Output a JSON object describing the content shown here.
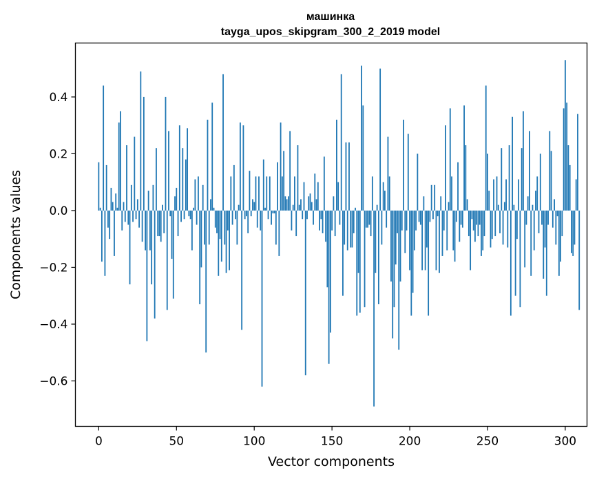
{
  "chart_data": {
    "type": "bar",
    "title": "машинка",
    "subtitle": "tayga_upos_skipgram_300_2_2019 model",
    "xlabel": "Vector components",
    "ylabel": "Components values",
    "xlim": [
      -15,
      314
    ],
    "ylim": [
      -0.76,
      0.59
    ],
    "xticks": [
      0,
      50,
      100,
      150,
      200,
      250,
      300
    ],
    "xtick_labels": [
      "0",
      "50",
      "100",
      "150",
      "200",
      "250",
      "300"
    ],
    "yticks": [
      -0.6,
      -0.4,
      -0.2,
      0.0,
      0.2,
      0.4
    ],
    "ytick_labels": [
      "−0.6",
      "−0.4",
      "−0.2",
      "0.0",
      "0.2",
      "0.4"
    ],
    "grid": false,
    "color": "#1f77b4",
    "values": [
      0.17,
      0.01,
      -0.18,
      0.44,
      -0.23,
      0.16,
      -0.06,
      -0.1,
      0.08,
      0.03,
      -0.16,
      0.06,
      0.01,
      0.31,
      0.35,
      -0.07,
      0.03,
      -0.04,
      0.23,
      -0.05,
      -0.26,
      0.09,
      -0.04,
      0.26,
      -0.03,
      0.04,
      -0.06,
      0.49,
      -0.11,
      0.4,
      -0.14,
      -0.46,
      0.07,
      -0.14,
      -0.26,
      0.09,
      -0.38,
      0.22,
      -0.09,
      -0.09,
      -0.11,
      0.02,
      -0.08,
      0.4,
      -0.35,
      0.28,
      -0.02,
      -0.17,
      -0.31,
      0.05,
      0.08,
      -0.09,
      0.3,
      -0.04,
      0.22,
      -0.03,
      0.18,
      0.29,
      -0.02,
      -0.03,
      -0.14,
      0.01,
      0.11,
      -0.05,
      0.12,
      -0.33,
      -0.2,
      0.09,
      -0.12,
      -0.5,
      0.32,
      -0.12,
      0.04,
      0.38,
      0.01,
      -0.06,
      -0.08,
      -0.23,
      -0.1,
      -0.18,
      0.48,
      -0.12,
      -0.22,
      -0.07,
      -0.21,
      0.12,
      -0.05,
      0.16,
      -0.03,
      -0.12,
      0.02,
      0.31,
      -0.42,
      0.3,
      -0.03,
      -0.02,
      -0.08,
      0.14,
      -0.02,
      0.04,
      0.03,
      0.12,
      -0.06,
      0.12,
      -0.07,
      -0.62,
      0.18,
      0.01,
      0.12,
      -0.03,
      0.12,
      -0.05,
      -0.01,
      -0.01,
      -0.12,
      0.17,
      -0.16,
      0.31,
      0.12,
      0.21,
      0.05,
      0.04,
      0.05,
      0.28,
      -0.07,
      0.02,
      0.12,
      -0.09,
      0.23,
      0.02,
      0.04,
      -0.03,
      0.1,
      -0.58,
      -0.03,
      0.05,
      0.06,
      0.03,
      -0.05,
      0.13,
      0.04,
      0.1,
      -0.07,
      -0.03,
      -0.08,
      0.19,
      -0.11,
      -0.27,
      -0.54,
      -0.43,
      -0.07,
      0.05,
      -0.09,
      0.32,
      0.1,
      -0.05,
      0.48,
      -0.3,
      -0.12,
      0.24,
      -0.14,
      0.24,
      -0.13,
      -0.13,
      -0.08,
      0.01,
      -0.37,
      -0.22,
      -0.36,
      0.51,
      0.37,
      -0.34,
      -0.06,
      -0.06,
      -0.05,
      -0.09,
      0.12,
      -0.69,
      -0.22,
      0.02,
      -0.33,
      0.5,
      -0.12,
      0.1,
      0.07,
      -0.06,
      0.26,
      0.12,
      -0.25,
      -0.45,
      -0.34,
      -0.19,
      -0.08,
      -0.49,
      -0.25,
      -0.07,
      0.32,
      -0.15,
      -0.07,
      0.27,
      -0.21,
      -0.37,
      -0.29,
      -0.14,
      -0.07,
      0.2,
      -0.04,
      -0.05,
      -0.21,
      0.05,
      -0.21,
      -0.13,
      -0.37,
      -0.04,
      0.09,
      -0.03,
      0.09,
      -0.21,
      -0.02,
      -0.22,
      0.05,
      -0.16,
      -0.07,
      0.3,
      -0.14,
      0.03,
      0.36,
      0.12,
      -0.14,
      -0.18,
      -0.04,
      0.17,
      -0.11,
      -0.05,
      -0.06,
      0.37,
      0.23,
      0.04,
      -0.09,
      -0.21,
      -0.03,
      -0.07,
      -0.11,
      -0.05,
      -0.09,
      -0.05,
      -0.16,
      -0.14,
      -0.09,
      0.44,
      0.2,
      0.07,
      -0.13,
      -0.1,
      0.11,
      -0.09,
      0.12,
      0.02,
      -0.08,
      0.22,
      -0.12,
      0.03,
      0.11,
      -0.13,
      0.23,
      -0.37,
      0.33,
      0.02,
      -0.3,
      -0.1,
      0.11,
      -0.34,
      0.22,
      0.35,
      -0.2,
      -0.05,
      0.05,
      0.28,
      -0.23,
      0.02,
      -0.14,
      0.07,
      0.12,
      -0.08,
      0.2,
      -0.05,
      -0.24,
      -0.13,
      -0.3,
      -0.05,
      0.28,
      0.21,
      -0.06,
      0.04,
      -0.12,
      -0.02,
      -0.23,
      -0.18,
      -0.09,
      0.36,
      0.53,
      0.38,
      0.23,
      0.16,
      -0.15,
      -0.16,
      -0.12,
      0.11,
      0.34,
      -0.35
    ]
  }
}
